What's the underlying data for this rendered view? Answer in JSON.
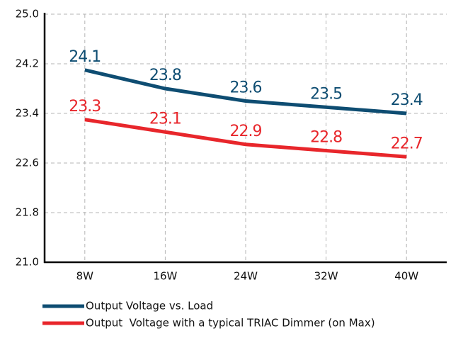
{
  "chart_data": {
    "type": "line",
    "categories": [
      "8W",
      "16W",
      "24W",
      "32W",
      "40W"
    ],
    "series": [
      {
        "name": "Output Voltage vs. Load",
        "color": "#0e4d72",
        "values": [
          24.1,
          23.8,
          23.6,
          23.5,
          23.4
        ]
      },
      {
        "name": "Output  Voltage with a typical TRIAC Dimmer (on Max)",
        "color": "#e8262b",
        "values": [
          23.3,
          23.1,
          22.9,
          22.8,
          22.7
        ]
      }
    ],
    "ylim": [
      21,
      25
    ],
    "yticks": [
      {
        "value": 21,
        "label": "21.0"
      },
      21.8,
      22.6,
      23.4,
      24.2,
      {
        "value": 25,
        "label": "25.0"
      }
    ],
    "grid": true,
    "legend": "bottom"
  }
}
